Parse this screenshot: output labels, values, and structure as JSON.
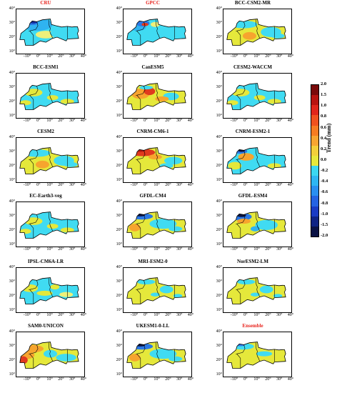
{
  "panels": [
    {
      "name": "CRU",
      "highlight": true,
      "pattern": "cru"
    },
    {
      "name": "GPCC",
      "highlight": true,
      "pattern": "gpcc"
    },
    {
      "name": "BCC-CSM2-MR",
      "highlight": false,
      "pattern": "warm"
    },
    {
      "name": "BCC-ESM1",
      "highlight": false,
      "pattern": "cyan"
    },
    {
      "name": "CanESM5",
      "highlight": false,
      "pattern": "hot"
    },
    {
      "name": "CESM2-WACCM",
      "highlight": false,
      "pattern": "cyan"
    },
    {
      "name": "CESM2",
      "highlight": false,
      "pattern": "warm"
    },
    {
      "name": "CNRM-CM6-1",
      "highlight": false,
      "pattern": "cnrm"
    },
    {
      "name": "CNRM-ESM2-1",
      "highlight": false,
      "pattern": "cnrmesm"
    },
    {
      "name": "EC-Earth3-veg",
      "highlight": false,
      "pattern": "cyan"
    },
    {
      "name": "GFDL-CM4",
      "highlight": false,
      "pattern": "gfdl"
    },
    {
      "name": "GFDL-ESM4",
      "highlight": false,
      "pattern": "gfdlesm"
    },
    {
      "name": "IPSL-CM6A-LR",
      "highlight": false,
      "pattern": "mixed"
    },
    {
      "name": "MRI-ESM2-0",
      "highlight": false,
      "pattern": "yellow"
    },
    {
      "name": "NorESM2-LM",
      "highlight": false,
      "pattern": "yellow"
    },
    {
      "name": "SAM0-UNICON",
      "highlight": false,
      "pattern": "sam"
    },
    {
      "name": "UKESM1-0-LL",
      "highlight": false,
      "pattern": "gfdl"
    },
    {
      "name": "Ensemble",
      "highlight": true,
      "pattern": "ensemble"
    }
  ],
  "axes": {
    "y_ticks": [
      "40°",
      "30°",
      "20°",
      "10°"
    ],
    "x_ticks": [
      "-10°",
      "0°",
      "10°",
      "20°",
      "30°",
      "40°"
    ]
  },
  "colorbar": {
    "title": "Trend (mm)",
    "ticks": [
      "2.0",
      "1.5",
      "1.0",
      "0.8",
      "0.6",
      "0.4",
      "0.2",
      "0.0",
      "-0.2",
      "-0.4",
      "-0.6",
      "-0.8",
      "-1.0",
      "-1.5",
      "-2.0"
    ],
    "colors": [
      "#7a0a0a",
      "#b8140f",
      "#e0261a",
      "#f0521e",
      "#f77c22",
      "#f8a531",
      "#f3cf3a",
      "#e7e83a",
      "#3cd7f0",
      "#2fb6f2",
      "#2a8ff0",
      "#2563e2",
      "#1a3bc4",
      "#0f2384",
      "#0a1244"
    ]
  }
}
